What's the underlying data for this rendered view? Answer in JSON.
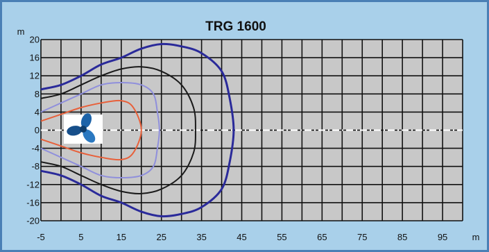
{
  "chart_data": {
    "type": "line",
    "title": "TRG 1600",
    "xlabel": "m",
    "ylabel": "m",
    "xlim": [
      -5,
      100
    ],
    "ylim": [
      -20,
      20
    ],
    "x_ticks": [
      "-5",
      "5",
      "15",
      "25",
      "35",
      "45",
      "55",
      "65",
      "75",
      "85",
      "95"
    ],
    "y_ticks": [
      "20",
      "16",
      "12",
      "8",
      "4",
      "0",
      "-4",
      "-8",
      "-12",
      "-16",
      "-20"
    ],
    "grid": true,
    "centerline_y": 0,
    "colors": {
      "outer_background": "#a9d0ea",
      "plot_background": "#c8c8c8",
      "grid": "#111111",
      "centerline": "#ffffff",
      "border": "#4a7fb5"
    },
    "icon": "propeller-icon",
    "series": [
      {
        "color": "#e8603a",
        "points": [
          [
            -5,
            2
          ],
          [
            0,
            3.5
          ],
          [
            5,
            5
          ],
          [
            10,
            6
          ],
          [
            15,
            6.5
          ],
          [
            18,
            5
          ],
          [
            20,
            0
          ],
          [
            18,
            -5
          ],
          [
            15,
            -6.5
          ],
          [
            10,
            -6
          ],
          [
            5,
            -5
          ],
          [
            0,
            -3.5
          ],
          [
            -5,
            -2
          ]
        ]
      },
      {
        "color": "#8f8fdc",
        "points": [
          [
            -5,
            4
          ],
          [
            0,
            6
          ],
          [
            5,
            8
          ],
          [
            10,
            10
          ],
          [
            15,
            10.5
          ],
          [
            20,
            10
          ],
          [
            23,
            8
          ],
          [
            24,
            4
          ],
          [
            24.5,
            0
          ],
          [
            24,
            -4
          ],
          [
            23,
            -8
          ],
          [
            20,
            -10
          ],
          [
            15,
            -10.5
          ],
          [
            10,
            -10
          ],
          [
            5,
            -8
          ],
          [
            0,
            -6
          ],
          [
            -5,
            -4
          ]
        ]
      },
      {
        "color": "#1a1a1a",
        "points": [
          [
            -5,
            7
          ],
          [
            0,
            8
          ],
          [
            5,
            10
          ],
          [
            10,
            12
          ],
          [
            15,
            13.5
          ],
          [
            20,
            14
          ],
          [
            25,
            13
          ],
          [
            30,
            10
          ],
          [
            33,
            5
          ],
          [
            33.5,
            0
          ],
          [
            33,
            -5
          ],
          [
            30,
            -10
          ],
          [
            25,
            -13
          ],
          [
            20,
            -14
          ],
          [
            15,
            -13.5
          ],
          [
            10,
            -12
          ],
          [
            5,
            -10
          ],
          [
            0,
            -8
          ],
          [
            -5,
            -7
          ]
        ]
      },
      {
        "color": "#2a2a9a",
        "points": [
          [
            -5,
            9
          ],
          [
            0,
            10
          ],
          [
            5,
            12
          ],
          [
            10,
            14.5
          ],
          [
            15,
            16
          ],
          [
            20,
            18
          ],
          [
            25,
            19
          ],
          [
            30,
            18.5
          ],
          [
            35,
            17
          ],
          [
            40,
            13
          ],
          [
            42,
            7
          ],
          [
            43,
            0
          ],
          [
            42,
            -7
          ],
          [
            40,
            -13
          ],
          [
            35,
            -17
          ],
          [
            30,
            -18.5
          ],
          [
            25,
            -19
          ],
          [
            20,
            -18
          ],
          [
            15,
            -16
          ],
          [
            10,
            -14.5
          ],
          [
            5,
            -12
          ],
          [
            0,
            -10
          ],
          [
            -5,
            -9
          ]
        ]
      }
    ]
  }
}
